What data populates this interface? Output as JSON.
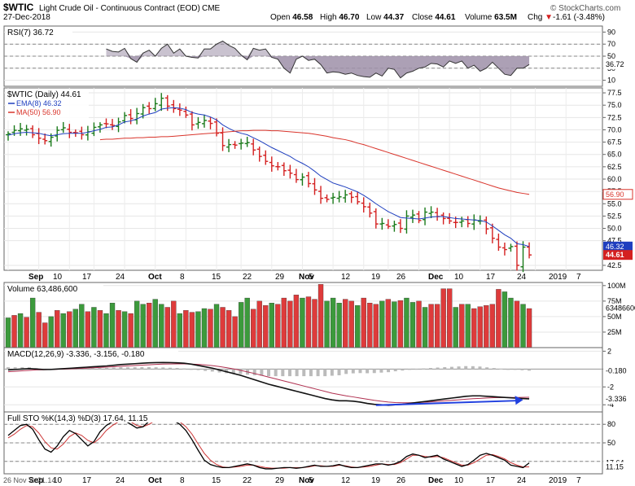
{
  "header": {
    "symbol": "$WTIC",
    "name": "Light Crude Oil - Continuous Contract (EOD)",
    "exchange": "CME",
    "date": "27-Dec-2018",
    "brand": "© StockCharts.com",
    "open_label": "Open",
    "open": "46.58",
    "high_label": "High",
    "high": "46.70",
    "low_label": "Low",
    "low": "44.37",
    "close_label": "Close",
    "close": "44.61",
    "volume_label": "Volume",
    "volume": "63.5M",
    "chg_label": "Chg",
    "chg": "-1.61 (-3.48%)",
    "chg_arrow": "▼"
  },
  "colors": {
    "up": "#1a7a1a",
    "down": "#d42020",
    "ema": "#1f3fbf",
    "ma50": "#d9342b",
    "rsi_fill": "#9d8fa8",
    "sto_k": "#000000",
    "sto_d": "#cc3333",
    "vol_up": "#3c9a3c",
    "vol_down": "#de3b3b",
    "arrow": "#1f3fdf",
    "bg": "#ffffff"
  },
  "x_axis": {
    "labels": [
      "Sep",
      "10",
      "17",
      "24",
      "Oct",
      "8",
      "15",
      "22",
      "29",
      "Nov",
      "5",
      "12",
      "19",
      "26",
      "Dec",
      "10",
      "17",
      "24",
      "2019",
      "7"
    ]
  },
  "footer_note": "26 Nov Y:-21.14",
  "chart_data": [
    {
      "type": "line",
      "id": "rsi",
      "title": "RSI(7) 36.72",
      "ylim": [
        0,
        100
      ],
      "y_ticks": [
        "90",
        "70",
        "50",
        "30",
        "10"
      ],
      "y_tick_values": [
        90,
        70,
        50,
        30,
        10
      ],
      "ref_lines": [
        70,
        50,
        30
      ],
      "last_label": "36.72",
      "values": [
        62,
        58,
        57,
        63,
        46,
        40,
        55,
        60,
        50,
        63,
        70,
        55,
        62,
        50,
        48,
        47,
        62,
        62,
        70,
        75,
        68,
        63,
        52,
        44,
        63,
        60,
        62,
        48,
        45,
        30,
        22,
        45,
        50,
        43,
        45,
        36,
        22,
        24,
        23,
        20,
        22,
        18,
        16,
        15,
        22,
        17,
        30,
        28,
        14,
        22,
        25,
        30,
        32,
        38,
        37,
        32,
        42,
        38,
        42,
        30,
        35,
        25,
        30,
        40,
        30,
        20,
        18,
        30,
        30,
        36
      ]
    },
    {
      "type": "ohlc",
      "id": "price",
      "title": "$WTIC (Daily) 44.61",
      "legend": [
        {
          "name": "EMA(8) 46.32",
          "color": "ema"
        },
        {
          "name": "MA(50) 56.90",
          "color": "ma50"
        }
      ],
      "ylim": [
        41.5,
        78.5
      ],
      "y_ticks": [
        "77.5",
        "75.0",
        "72.5",
        "70.0",
        "67.5",
        "65.0",
        "62.5",
        "60.0",
        "57.5",
        "55.0",
        "52.5",
        "50.0",
        "47.5",
        "42.5"
      ],
      "y_tick_values": [
        77.5,
        75,
        72.5,
        70,
        67.5,
        65,
        62.5,
        60,
        57.5,
        55,
        52.5,
        50,
        47.5,
        42.5
      ],
      "flags": [
        {
          "label": "56.90",
          "value": 56.9,
          "color": "ma50",
          "outline": true
        },
        {
          "label": "46.32",
          "value": 46.32,
          "color": "ema",
          "outline": false
        },
        {
          "label": "44.61",
          "value": 44.61,
          "color": "down",
          "outline": false,
          "bold": true
        }
      ],
      "close": [
        69.2,
        69.9,
        70.2,
        70.1,
        69.0,
        68.3,
        67.8,
        68.5,
        69.9,
        70.4,
        69.5,
        69.4,
        69.0,
        69.6,
        70.5,
        71.0,
        71.2,
        70.9,
        71.6,
        72.9,
        72.3,
        73.3,
        74.5,
        74.3,
        75.3,
        76.4,
        74.8,
        74.3,
        74.0,
        73.0,
        71.0,
        71.5,
        71.9,
        71.3,
        69.3,
        66.8,
        67.0,
        66.9,
        67.3,
        67.4,
        65.9,
        64.6,
        63.6,
        62.7,
        62.5,
        61.7,
        61.2,
        59.9,
        60.4,
        59.1,
        57.8,
        56.1,
        55.9,
        56.3,
        56.4,
        56.8,
        56.3,
        55.4,
        54.4,
        53.1,
        50.9,
        51.0,
        50.4,
        50.8,
        50.0,
        52.5,
        52.7,
        51.6,
        53.3,
        53.3,
        52.4,
        52.0,
        51.5,
        51.2,
        51.5,
        51.0,
        51.7,
        51.5,
        49.9,
        48.0,
        46.2,
        45.7,
        46.3,
        42.5,
        46.2,
        44.61
      ],
      "ema8": [
        68.9,
        69.2,
        69.4,
        69.5,
        69.4,
        69.3,
        69.0,
        68.8,
        69.0,
        69.2,
        69.3,
        69.3,
        69.3,
        69.5,
        69.8,
        70.1,
        70.5,
        70.6,
        71.0,
        71.6,
        71.8,
        72.2,
        72.8,
        73.2,
        73.5,
        74.2,
        74.4,
        74.5,
        74.4,
        74.1,
        73.5,
        73.2,
        73.0,
        72.6,
        72.0,
        71.0,
        70.3,
        69.7,
        69.3,
        69.0,
        68.4,
        67.8,
        67.1,
        66.4,
        65.8,
        65.2,
        64.6,
        63.8,
        63.2,
        62.5,
        61.6,
        60.6,
        59.9,
        59.2,
        58.8,
        58.4,
        57.9,
        57.4,
        56.7,
        55.9,
        55.0,
        54.2,
        53.4,
        52.8,
        52.2,
        52.1,
        52.0,
        51.9,
        52.1,
        52.3,
        52.4,
        52.4,
        52.2,
        52.0,
        51.9,
        51.8,
        51.7,
        51.6,
        51.3,
        50.5,
        49.6,
        48.7,
        48.0,
        46.9,
        46.7,
        46.32
      ],
      "ma50": [
        68.0,
        68.1,
        68.1,
        68.2,
        68.3,
        68.3,
        68.4,
        68.4,
        68.5,
        68.5,
        68.6,
        68.6,
        68.7,
        68.8,
        68.9,
        69.0,
        69.1,
        69.2,
        69.3,
        69.4,
        69.5,
        69.6,
        69.7,
        69.8,
        69.8,
        69.9,
        69.9,
        69.9,
        69.8,
        69.8,
        69.7,
        69.6,
        69.5,
        69.4,
        69.3,
        69.1,
        68.9,
        68.7,
        68.4,
        68.2,
        68.0,
        67.7,
        67.3,
        67.0,
        66.6,
        66.2,
        65.8,
        65.4,
        65.0,
        64.6,
        64.2,
        63.8,
        63.4,
        63.0,
        62.6,
        62.2,
        61.8,
        61.4,
        61.0,
        60.6,
        60.2,
        59.8,
        59.4,
        59.0,
        58.6,
        58.2,
        57.9,
        57.6,
        57.3,
        57.1,
        56.9
      ]
    },
    {
      "type": "bar",
      "id": "volume",
      "title": "Volume 63,486,600",
      "ylim": [
        0,
        105
      ],
      "unit": "M",
      "y_ticks": [
        "100M",
        "75M",
        "50M",
        "25M"
      ],
      "y_tick_values": [
        100,
        75,
        50,
        25
      ],
      "last_label": "63486600",
      "values": [
        48,
        52,
        55,
        49,
        80,
        57,
        40,
        50,
        60,
        55,
        58,
        62,
        70,
        58,
        65,
        60,
        55,
        72,
        60,
        58,
        55,
        75,
        70,
        72,
        78,
        70,
        65,
        75,
        55,
        60,
        57,
        58,
        63,
        62,
        70,
        65,
        60,
        50,
        73,
        80,
        62,
        75,
        68,
        72,
        70,
        80,
        75,
        85,
        80,
        82,
        78,
        102,
        75,
        80,
        72,
        78,
        75,
        68,
        80,
        72,
        70,
        75,
        78,
        74,
        76,
        80,
        73,
        75,
        65,
        70,
        70,
        95,
        95,
        65,
        70,
        70,
        63,
        66,
        68,
        70,
        94,
        90,
        80,
        75,
        70,
        63
      ],
      "up": [
        1,
        0,
        1,
        0,
        1,
        0,
        0,
        1,
        0,
        1,
        0,
        1,
        1,
        0,
        1,
        0,
        1,
        1,
        0,
        1,
        0,
        1,
        1,
        0,
        1,
        1,
        0,
        0,
        1,
        0,
        0,
        1,
        1,
        0,
        1,
        0,
        0,
        0,
        1,
        1,
        0,
        0,
        0,
        1,
        0,
        0,
        0,
        0,
        1,
        0,
        0,
        0,
        1,
        1,
        1,
        0,
        0,
        1,
        0,
        0,
        0,
        1,
        0,
        1,
        0,
        1,
        1,
        0,
        1,
        0,
        0,
        0,
        0,
        1,
        0,
        1,
        0,
        0,
        0,
        0,
        0,
        1,
        1,
        0,
        1,
        0
      ]
    },
    {
      "type": "line",
      "id": "macd",
      "title": "MACD(12,26,9) -3.336, -3.156, -0.180",
      "ylim": [
        -4.8,
        2.4
      ],
      "y_ticks": [
        "2",
        "0",
        "-2",
        "-4"
      ],
      "y_tick_values": [
        2,
        0,
        -2,
        -4
      ],
      "flags": [
        {
          "label": "-0.180",
          "value": -0.18
        },
        {
          "label": "-3.336",
          "value": -3.336
        }
      ],
      "macd": [
        -0.1,
        -0.05,
        0,
        0.05,
        0.0,
        -0.05,
        -0.05,
        0.0,
        0.05,
        0.1,
        0.15,
        0.2,
        0.25,
        0.3,
        0.35,
        0.42,
        0.5,
        0.55,
        0.6,
        0.65,
        0.7,
        0.72,
        0.73,
        0.72,
        0.7,
        0.65,
        0.55,
        0.4,
        0.25,
        0.1,
        -0.1,
        -0.3,
        -0.5,
        -0.7,
        -0.95,
        -1.2,
        -1.45,
        -1.7,
        -1.9,
        -2.1,
        -2.3,
        -2.5,
        -2.7,
        -2.9,
        -3.1,
        -3.3,
        -3.45,
        -3.55,
        -3.55,
        -3.6,
        -3.7,
        -3.85,
        -3.95,
        -4.0,
        -4.05,
        -4.0,
        -3.95,
        -3.85,
        -3.75,
        -3.65,
        -3.55,
        -3.45,
        -3.35,
        -3.25,
        -3.15,
        -3.05,
        -3.0,
        -3.0,
        -3.05,
        -3.1,
        -3.15,
        -3.2,
        -3.25,
        -3.3,
        -3.34
      ],
      "signal": [
        -0.3,
        -0.25,
        -0.2,
        -0.15,
        -0.1,
        -0.08,
        -0.05,
        -0.03,
        0.0,
        0.03,
        0.06,
        0.1,
        0.14,
        0.18,
        0.22,
        0.26,
        0.3,
        0.35,
        0.4,
        0.44,
        0.48,
        0.52,
        0.55,
        0.57,
        0.58,
        0.58,
        0.56,
        0.52,
        0.46,
        0.38,
        0.28,
        0.16,
        0.02,
        -0.14,
        -0.32,
        -0.5,
        -0.7,
        -0.9,
        -1.1,
        -1.3,
        -1.5,
        -1.7,
        -1.9,
        -2.1,
        -2.3,
        -2.5,
        -2.7,
        -2.85,
        -3.0,
        -3.12,
        -3.25,
        -3.38,
        -3.5,
        -3.6,
        -3.7,
        -3.75,
        -3.78,
        -3.78,
        -3.76,
        -3.72,
        -3.67,
        -3.62,
        -3.56,
        -3.5,
        -3.44,
        -3.38,
        -3.32,
        -3.28,
        -3.24,
        -3.21,
        -3.19,
        -3.18,
        -3.18,
        -3.17,
        -3.156
      ],
      "histogram": [
        0.2,
        0.2,
        0.2,
        0.2,
        0.1,
        0.03,
        0.0,
        0.03,
        0.05,
        0.07,
        0.09,
        0.1,
        0.11,
        0.12,
        0.13,
        0.16,
        0.2,
        0.2,
        0.2,
        0.21,
        0.22,
        0.2,
        0.18,
        0.15,
        0.12,
        0.07,
        -0.01,
        -0.12,
        -0.21,
        -0.28,
        -0.38,
        -0.46,
        -0.52,
        -0.56,
        -0.63,
        -0.7,
        -0.75,
        -0.8,
        -0.8,
        -0.8,
        -0.8,
        -0.8,
        -0.8,
        -0.8,
        -0.8,
        -0.8,
        -0.75,
        -0.7,
        -0.55,
        -0.48,
        -0.45,
        -0.47,
        -0.45,
        -0.4,
        -0.35,
        -0.25,
        -0.17,
        -0.07,
        0.01,
        0.07,
        0.12,
        0.17,
        0.21,
        0.25,
        0.29,
        0.33,
        0.32,
        0.28,
        0.19,
        0.11,
        0.04,
        -0.02,
        -0.07,
        -0.13,
        -0.18
      ]
    },
    {
      "type": "line",
      "id": "sto",
      "title": "Full STO %K(14,3) %D(3) 17.64, 11.15",
      "ylim": [
        0,
        100
      ],
      "y_ticks": [
        "80",
        "50",
        "20"
      ],
      "y_tick_values": [
        80,
        50,
        20
      ],
      "ref_lines": [
        80,
        50,
        20
      ],
      "flags": [
        {
          "label": "17.64",
          "value": 17.64
        },
        {
          "label": "11.15",
          "value": 11.15
        }
      ],
      "k": [
        62,
        70,
        78,
        80,
        72,
        55,
        40,
        35,
        45,
        60,
        70,
        65,
        55,
        45,
        52,
        68,
        78,
        84,
        88,
        86,
        80,
        74,
        76,
        85,
        90,
        92,
        90,
        86,
        80,
        70,
        55,
        38,
        22,
        15,
        12,
        10,
        10,
        12,
        14,
        16,
        14,
        10,
        8,
        8,
        9,
        10,
        10,
        9,
        10,
        12,
        14,
        12,
        12,
        13,
        15,
        12,
        10,
        10,
        12,
        14,
        16,
        16,
        14,
        16,
        20,
        28,
        32,
        30,
        26,
        28,
        30,
        24,
        20,
        16,
        12,
        15,
        22,
        30,
        33,
        30,
        26,
        22,
        14,
        12,
        10,
        17.64
      ],
      "d": [
        58,
        64,
        72,
        78,
        76,
        66,
        52,
        42,
        40,
        48,
        60,
        66,
        62,
        54,
        50,
        58,
        70,
        78,
        84,
        86,
        84,
        78,
        76,
        80,
        86,
        89,
        90,
        88,
        84,
        76,
        64,
        48,
        33,
        22,
        15,
        11,
        10,
        11,
        12,
        14,
        14,
        12,
        10,
        9,
        9,
        9,
        10,
        10,
        10,
        11,
        13,
        13,
        12,
        12,
        14,
        13,
        11,
        10,
        11,
        12,
        14,
        16,
        15,
        15,
        18,
        24,
        30,
        30,
        28,
        27,
        28,
        26,
        22,
        18,
        14,
        14,
        18,
        24,
        30,
        31,
        28,
        24,
        18,
        14,
        11,
        11.15
      ]
    }
  ]
}
